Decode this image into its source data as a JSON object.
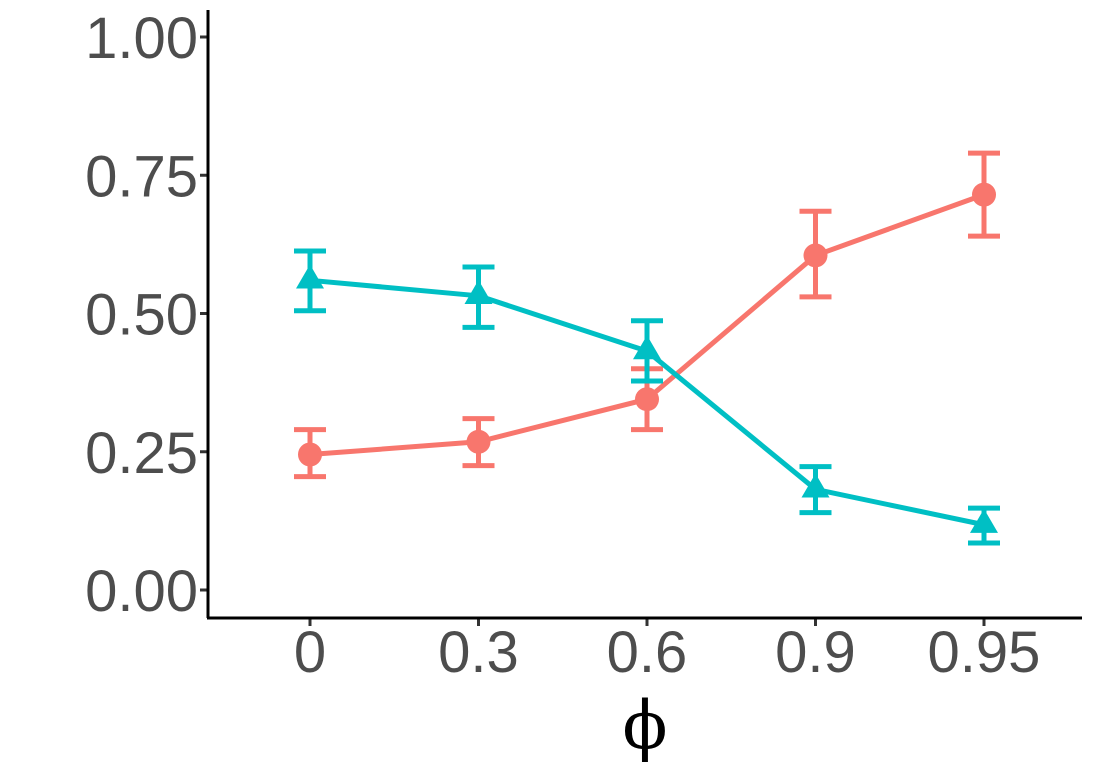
{
  "chart_data": {
    "type": "line",
    "title": "",
    "xlabel": "ϕ",
    "ylabel": "",
    "categories": [
      "0",
      "0.3",
      "0.6",
      "0.9",
      "0.95"
    ],
    "yticks": [
      "0.00",
      "0.25",
      "0.50",
      "0.75",
      "1.00"
    ],
    "ylim": [
      0,
      1
    ],
    "grid": false,
    "legend": "none",
    "series": [
      {
        "name": "series-red-circle",
        "color": "#f8766d",
        "marker": "circle",
        "values": [
          0.245,
          0.268,
          0.345,
          0.605,
          0.715
        ],
        "error_low": [
          0.205,
          0.225,
          0.29,
          0.53,
          0.64
        ],
        "error_high": [
          0.29,
          0.31,
          0.4,
          0.685,
          0.79
        ]
      },
      {
        "name": "series-teal-triangle",
        "color": "#00bfc4",
        "marker": "triangle",
        "values": [
          0.56,
          0.532,
          0.432,
          0.182,
          0.118
        ],
        "error_low": [
          0.505,
          0.475,
          0.378,
          0.14,
          0.085
        ],
        "error_high": [
          0.613,
          0.584,
          0.487,
          0.223,
          0.148
        ]
      }
    ]
  }
}
